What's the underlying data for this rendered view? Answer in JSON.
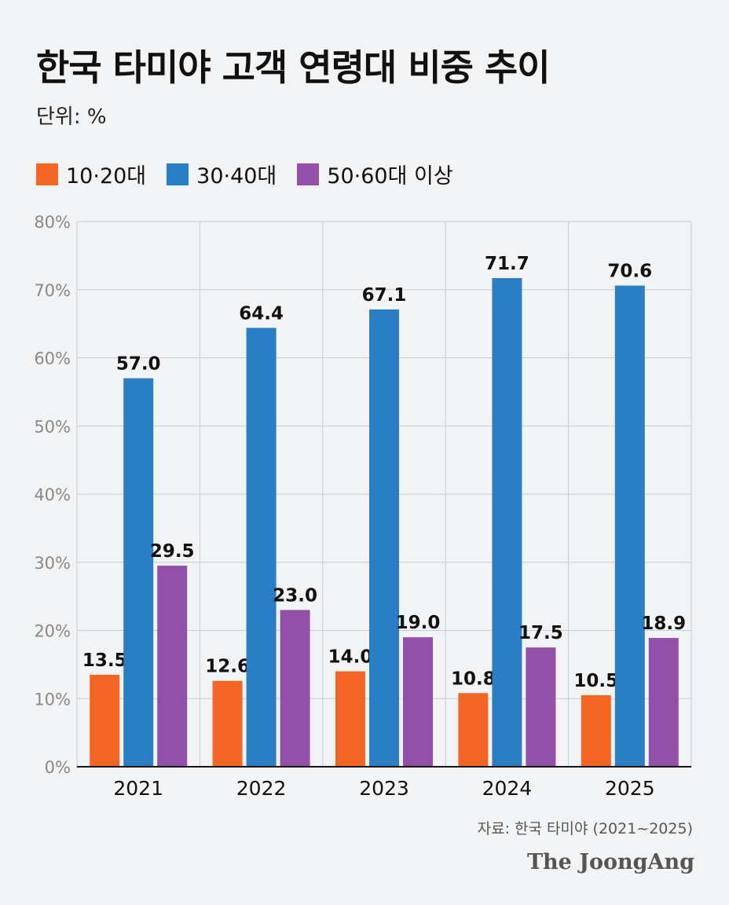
{
  "chart_data": {
    "type": "bar",
    "title": "한국 타미야 고객 연령대 비중 추이",
    "subtitle": "단위: %",
    "categories": [
      "2021",
      "2022",
      "2023",
      "2024",
      "2025"
    ],
    "series": [
      {
        "name": "10·20대",
        "color": "#f26522",
        "values": [
          13.5,
          12.6,
          14.0,
          10.8,
          10.5
        ]
      },
      {
        "name": "30·40대",
        "color": "#2a7fc4",
        "values": [
          57.0,
          64.4,
          67.1,
          71.7,
          70.6
        ]
      },
      {
        "name": "50·60대 이상",
        "color": "#9350a8",
        "values": [
          29.5,
          23.0,
          19.0,
          17.5,
          18.9
        ]
      }
    ],
    "ylim": [
      0,
      80
    ],
    "yticks": [
      "0%",
      "10%",
      "20%",
      "30%",
      "40%",
      "50%",
      "60%",
      "70%",
      "80%"
    ],
    "grid": true,
    "legend": "top-left",
    "source": "자료: 한국 타미야 (2021~2025)"
  },
  "brand": "The JoongAng"
}
